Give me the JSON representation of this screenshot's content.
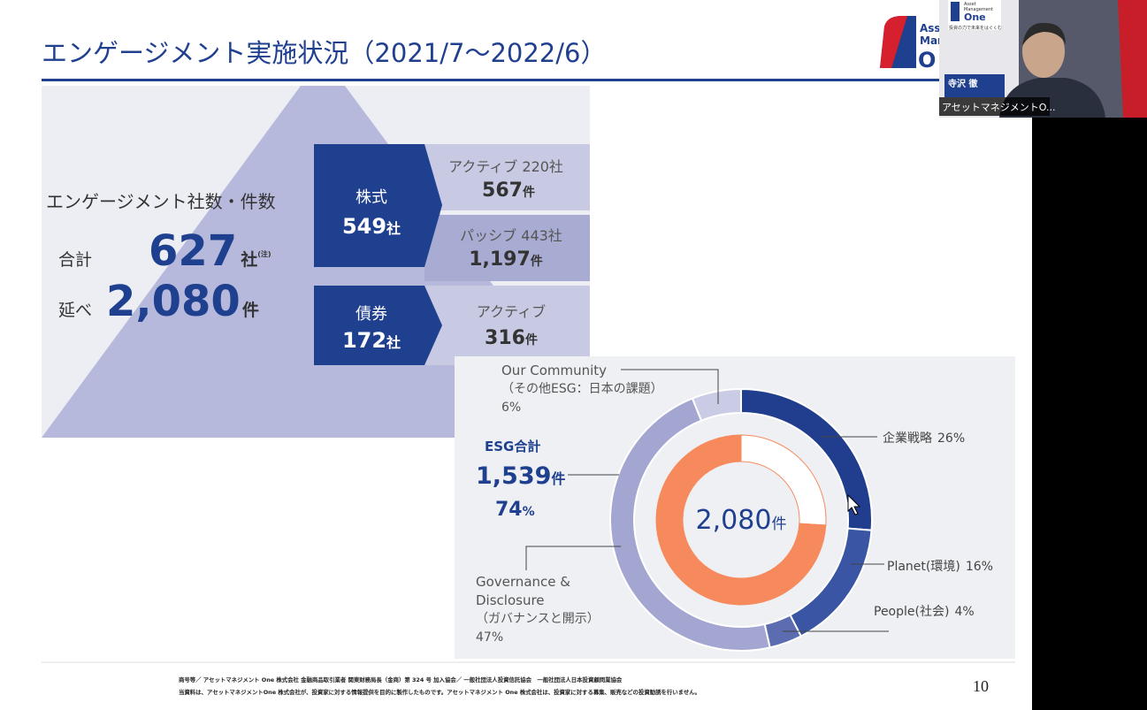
{
  "header": {
    "title": "エンゲージメント実施状況（2021/7〜2022/6）"
  },
  "slide_logo": {
    "line1": "Ass",
    "line2": "Mar",
    "line3": "O"
  },
  "video": {
    "logo_top": "Asset",
    "logo_mid": "Management",
    "logo_name": "One",
    "tagline": "投資の力で未来をはぐくむ",
    "speaker": "寺沢 徹",
    "caption": "アセットマネジメントO..."
  },
  "summary": {
    "heading": "エンゲージメント社数・件数",
    "total_label": "合計",
    "total_value": "627",
    "total_unit": "社",
    "note": "(注)",
    "cumulative_label": "延べ",
    "cumulative_value": "2,080",
    "cumulative_unit": "件"
  },
  "breakdown": [
    {
      "name": "株式",
      "count": "549",
      "unit": "社",
      "items": [
        {
          "label": "アクティブ 220社",
          "value": "567",
          "unit": "件"
        },
        {
          "label": "パッシブ 443社",
          "value": "1,197",
          "unit": "件"
        }
      ]
    },
    {
      "name": "債券",
      "count": "172",
      "unit": "社",
      "items": [
        {
          "label": "アクティブ",
          "value": "316",
          "unit": "件"
        }
      ]
    }
  ],
  "chart_data": {
    "type": "pie",
    "center_value": "2,080",
    "center_unit": "件",
    "percent_sign": "%",
    "outer": [
      {
        "label": [
          "企業戦略"
        ],
        "value": 26,
        "color": "#213e8e"
      },
      {
        "label": [
          "Planet(環境)"
        ],
        "value": 16,
        "color": "#3a55a3"
      },
      {
        "label": [
          "People(社会)"
        ],
        "value": 4,
        "color": "#5b6cb0"
      },
      {
        "label": [
          "Governance &",
          "Disclosure",
          "（ガバナンスと開示）"
        ],
        "value": 47,
        "color": "#a2a6d0"
      },
      {
        "label": [
          "Our Community",
          "（その他ESG：日本の課題）"
        ],
        "value": 6,
        "color": "#c9cce4"
      }
    ],
    "inner": {
      "values": [
        26,
        74
      ],
      "colors": [
        "#ffffff",
        "#f68a5c"
      ]
    },
    "esg": {
      "title": "ESG合計",
      "count": "1,539",
      "unit": "件"
    }
  },
  "footer": {
    "line1": "商号等／ アセットマネジメント One 株式会社 金融商品取引業者 関東財務局長（金商）第 324 号 加入協会／ 一般社団法人投資信託協会　一般社団法人日本投資顧問業協会",
    "line2": "当資料は、アセットマネジメントOne 株式会社が、投資家に対する情報提供を目的に製作したものです。アセットマネジメント One 株式会社は、投資家に対する募集、販売などの投資勧誘を行いません。",
    "page": "10"
  }
}
